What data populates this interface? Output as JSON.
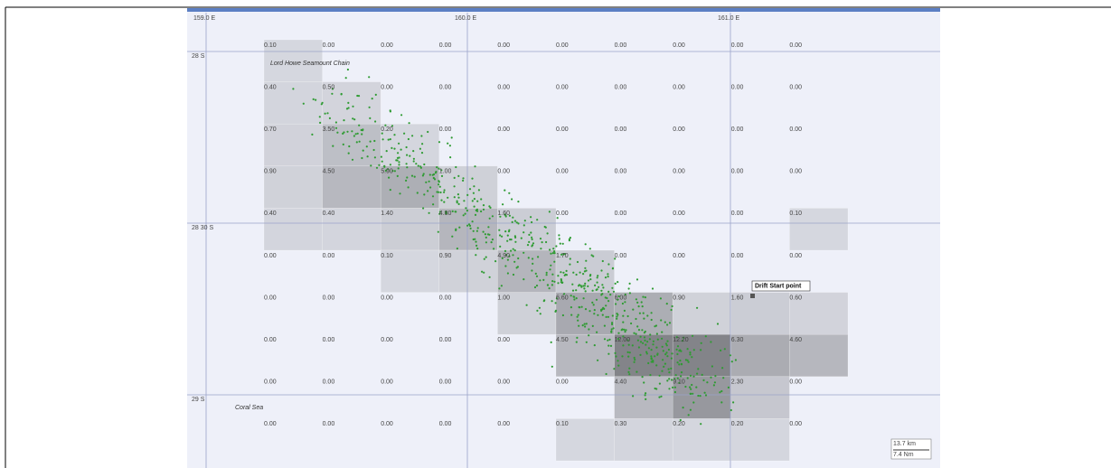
{
  "map": {
    "longitude_labels": [
      "159.0 E",
      "160.0 E",
      "161.0 E"
    ],
    "latitude_labels": [
      "28 S",
      "28 30 S",
      "29 S"
    ],
    "grid_values": [
      [
        "0.10",
        "0.00",
        "0.00",
        "0.00",
        "0.00",
        "0.00",
        "0.00",
        "0.00",
        "0.00",
        "0.00"
      ],
      [
        "0.40",
        "0.50",
        "0.00",
        "0.00",
        "0.00",
        "0.00",
        "0.00",
        "0.00",
        "0.00",
        "0.00"
      ],
      [
        "0.70",
        "3.50",
        "0.20",
        "0.00",
        "0.00",
        "0.00",
        "0.00",
        "0.00",
        "0.00",
        "0.00"
      ],
      [
        "0.90",
        "4.50",
        "5.90",
        "1.00",
        "0.00",
        "0.00",
        "0.00",
        "0.00",
        "0.00",
        "0.00"
      ],
      [
        "0.40",
        "0.40",
        "1.40",
        "4.80",
        "1.60",
        "0.00",
        "0.00",
        "0.00",
        "0.00",
        "0.10"
      ],
      [
        "0.00",
        "0.00",
        "0.10",
        "0.90",
        "4.90",
        "1.70",
        "0.00",
        "0.00",
        "0.00",
        "0.00"
      ],
      [
        "0.00",
        "0.00",
        "0.00",
        "0.00",
        "1.00",
        "6.60",
        "6.00",
        "0.90",
        "1.60",
        "0.60"
      ],
      [
        "0.00",
        "0.00",
        "0.00",
        "0.00",
        "0.00",
        "4.50",
        "12.00",
        "12.20",
        "6.30",
        "4.60"
      ],
      [
        "0.00",
        "0.00",
        "0.00",
        "0.00",
        "0.00",
        "0.00",
        "4.40",
        "9.10",
        "2.30",
        "0.00"
      ],
      [
        "0.00",
        "0.00",
        "0.00",
        "0.00",
        "0.00",
        "0.10",
        "0.30",
        "0.20",
        "0.20",
        "0.00"
      ]
    ],
    "places": [
      "Lord Howe Seamount Chain",
      "Coral Sea"
    ],
    "annotation": "Drift Start point",
    "scale": [
      "13.7 km",
      "7.4 Nm"
    ]
  }
}
